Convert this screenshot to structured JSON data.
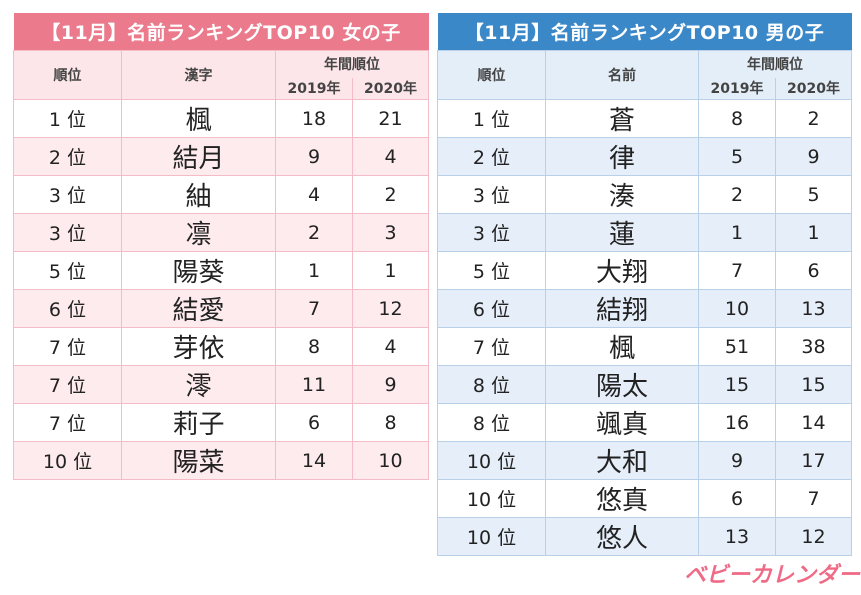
{
  "girls": {
    "title": "【11月】名前ランキングTOP10 女の子",
    "headers": {
      "rank": "順位",
      "name": "漢字",
      "years": "年間順位",
      "y1": "2019年",
      "y2": "2020年"
    },
    "rows": [
      {
        "rank": "1 位",
        "name": "楓",
        "y2019": "18",
        "y2020": "21"
      },
      {
        "rank": "2 位",
        "name": "結月",
        "y2019": "9",
        "y2020": "4"
      },
      {
        "rank": "3 位",
        "name": "紬",
        "y2019": "4",
        "y2020": "2"
      },
      {
        "rank": "3 位",
        "name": "凛",
        "y2019": "2",
        "y2020": "3"
      },
      {
        "rank": "5 位",
        "name": "陽葵",
        "y2019": "1",
        "y2020": "1"
      },
      {
        "rank": "6 位",
        "name": "結愛",
        "y2019": "7",
        "y2020": "12"
      },
      {
        "rank": "7 位",
        "name": "芽依",
        "y2019": "8",
        "y2020": "4"
      },
      {
        "rank": "7 位",
        "name": "澪",
        "y2019": "11",
        "y2020": "9"
      },
      {
        "rank": "7 位",
        "name": "莉子",
        "y2019": "6",
        "y2020": "8"
      },
      {
        "rank": "10 位",
        "name": "陽菜",
        "y2019": "14",
        "y2020": "10"
      }
    ]
  },
  "boys": {
    "title": "【11月】名前ランキングTOP10 男の子",
    "headers": {
      "rank": "順位",
      "name": "名前",
      "years": "年間順位",
      "y1": "2019年",
      "y2": "2020年"
    },
    "rows": [
      {
        "rank": "1 位",
        "name": "蒼",
        "y2019": "8",
        "y2020": "2"
      },
      {
        "rank": "2 位",
        "name": "律",
        "y2019": "5",
        "y2020": "9"
      },
      {
        "rank": "3 位",
        "name": "湊",
        "y2019": "2",
        "y2020": "5"
      },
      {
        "rank": "3 位",
        "name": "蓮",
        "y2019": "1",
        "y2020": "1"
      },
      {
        "rank": "5 位",
        "name": "大翔",
        "y2019": "7",
        "y2020": "6"
      },
      {
        "rank": "6 位",
        "name": "結翔",
        "y2019": "10",
        "y2020": "13"
      },
      {
        "rank": "7 位",
        "name": "楓",
        "y2019": "51",
        "y2020": "38"
      },
      {
        "rank": "8 位",
        "name": "陽太",
        "y2019": "15",
        "y2020": "15"
      },
      {
        "rank": "8 位",
        "name": "颯真",
        "y2019": "16",
        "y2020": "14"
      },
      {
        "rank": "10 位",
        "name": "大和",
        "y2019": "9",
        "y2020": "17"
      },
      {
        "rank": "10 位",
        "name": "悠真",
        "y2019": "6",
        "y2020": "7"
      },
      {
        "rank": "10 位",
        "name": "悠人",
        "y2019": "13",
        "y2020": "12"
      }
    ]
  },
  "logo": {
    "text": "ベビーカレンダー"
  },
  "colors": {
    "girls_accent": "#ea7a8c",
    "boys_accent": "#3b88c8",
    "logo": "#f06a86"
  }
}
